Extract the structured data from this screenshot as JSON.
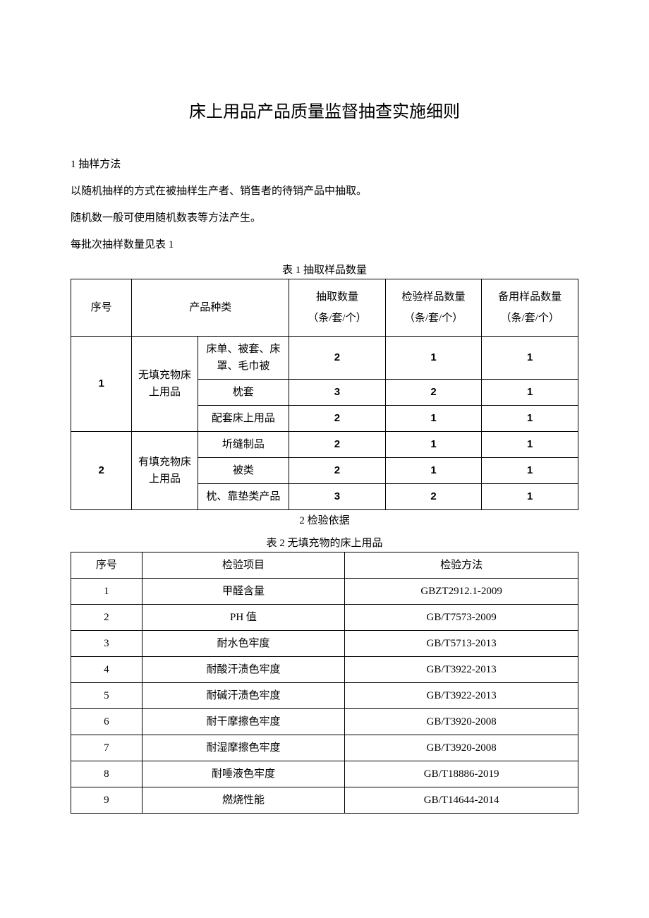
{
  "title": "床上用品产品质量监督抽查实施细则",
  "section1": {
    "heading": "1 抽样方法",
    "p1": "以随机抽样的方式在被抽样生产者、销售者的待销产品中抽取。",
    "p2": "随机数一般可使用随机数表等方法产生。",
    "p3": "每批次抽样数量见表 1"
  },
  "table1": {
    "caption": "表 1 抽取样品数量",
    "headers": {
      "seq": "序号",
      "category": "产品种类",
      "qty_draw": "抽取数量",
      "qty_draw_unit": "（条/套/个）",
      "qty_test": "检验样品数量",
      "qty_test_unit": "（条/套/个）",
      "qty_spare": "备用样品数量",
      "qty_spare_unit": "（条/套/个）"
    },
    "groups": [
      {
        "seq": "1",
        "category": "无填充物床上用品",
        "rows": [
          {
            "sub": "床单、被套、床罩、毛巾被",
            "draw": "2",
            "test": "1",
            "spare": "1"
          },
          {
            "sub": "枕套",
            "draw": "3",
            "test": "2",
            "spare": "1"
          },
          {
            "sub": "配套床上用品",
            "draw": "2",
            "test": "1",
            "spare": "1"
          }
        ]
      },
      {
        "seq": "2",
        "category": "有填充物床上用品",
        "rows": [
          {
            "sub": "圻缝制品",
            "draw": "2",
            "test": "1",
            "spare": "1"
          },
          {
            "sub": "被类",
            "draw": "2",
            "test": "1",
            "spare": "1"
          },
          {
            "sub": "枕、靠垫类产品",
            "draw": "3",
            "test": "2",
            "spare": "1"
          }
        ]
      }
    ]
  },
  "section2": {
    "heading": "2 检验依据"
  },
  "table2": {
    "caption": "表 2 无填充物的床上用品",
    "headers": {
      "seq": "序号",
      "item": "检验项目",
      "method": "检验方法"
    },
    "rows": [
      {
        "seq": "1",
        "item": "甲醛含量",
        "method": "GBZT2912.1-2009"
      },
      {
        "seq": "2",
        "item": "PH 值",
        "method": "GB/T7573-2009"
      },
      {
        "seq": "3",
        "item": "耐水色牢度",
        "method": "GB/T5713-2013"
      },
      {
        "seq": "4",
        "item": "耐酸汗渍色牢度",
        "method": "GB/T3922-2013"
      },
      {
        "seq": "5",
        "item": "耐碱汗渍色牢度",
        "method": "GB/T3922-2013"
      },
      {
        "seq": "6",
        "item": "耐干摩擦色牢度",
        "method": "GB/T3920-2008"
      },
      {
        "seq": "7",
        "item": "耐湿摩擦色牢度",
        "method": "GB/T3920-2008"
      },
      {
        "seq": "8",
        "item": "耐唾液色牢度",
        "method": "GB/T18886-2019"
      },
      {
        "seq": "9",
        "item": "燃烧性能",
        "method": "GB/T14644-2014"
      }
    ]
  },
  "style": {
    "page_bg": "#ffffff",
    "text_color": "#000000",
    "border_color": "#000000",
    "title_fontsize": 24,
    "body_fontsize": 15,
    "font_family": "SimSun"
  }
}
